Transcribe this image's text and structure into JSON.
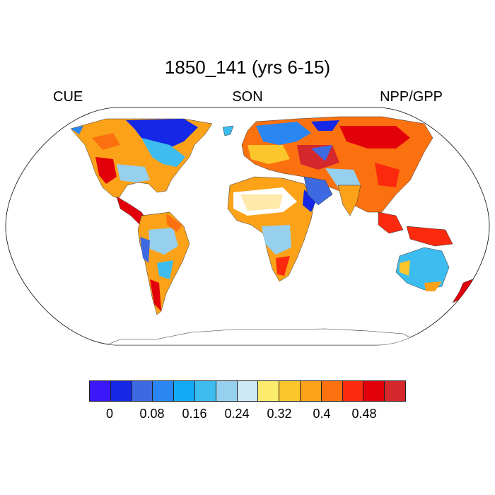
{
  "title": "1850_141 (yrs 6-15)",
  "left_label": "CUE",
  "center_label": "SON",
  "right_label": "NPP/GPP",
  "colorbar": {
    "colors": [
      "#3c17f7",
      "#1428e6",
      "#3d6ae0",
      "#2a86f2",
      "#12aaf6",
      "#3dbcf0",
      "#96d0ee",
      "#cce8f7",
      "#fdeb6b",
      "#fcc62b",
      "#fba219",
      "#fb7110",
      "#fb2a0e",
      "#e2010b",
      "#d5282c"
    ],
    "tick_labels": [
      "0",
      "0.08",
      "0.16",
      "0.24",
      "0.32",
      "0.4",
      "0.48"
    ]
  }
}
